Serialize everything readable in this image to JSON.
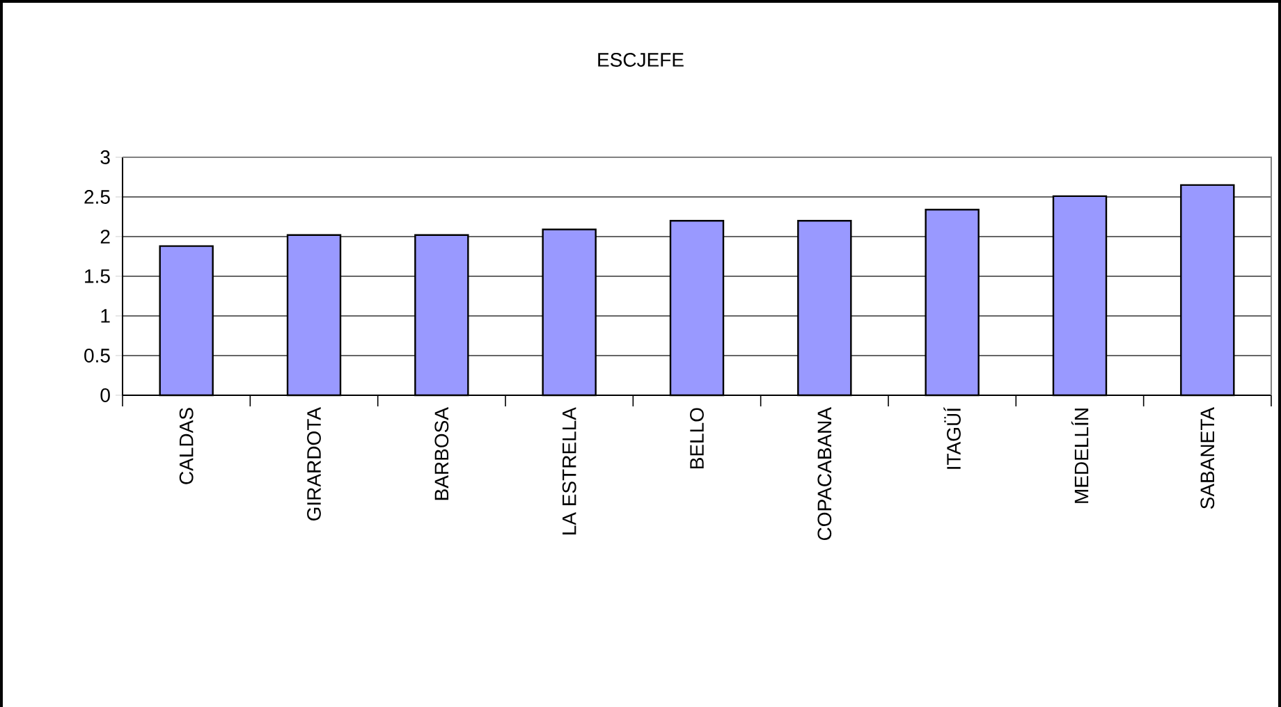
{
  "chart_data": {
    "type": "bar",
    "title": "ESCJEFE",
    "categories": [
      "CALDAS",
      "GIRARDOTA",
      "BARBOSA",
      "LA ESTRELLA",
      "BELLO",
      "COPACABANA",
      "ITAGÜÍ",
      "MEDELLÍN",
      "SABANETA"
    ],
    "values": [
      1.88,
      2.02,
      2.02,
      2.09,
      2.2,
      2.2,
      2.34,
      2.51,
      2.65
    ],
    "color": "#9999ff",
    "ylim": [
      0,
      3
    ],
    "yticks": [
      0,
      0.5,
      1,
      1.5,
      2,
      2.5,
      3
    ],
    "grid": "y"
  }
}
